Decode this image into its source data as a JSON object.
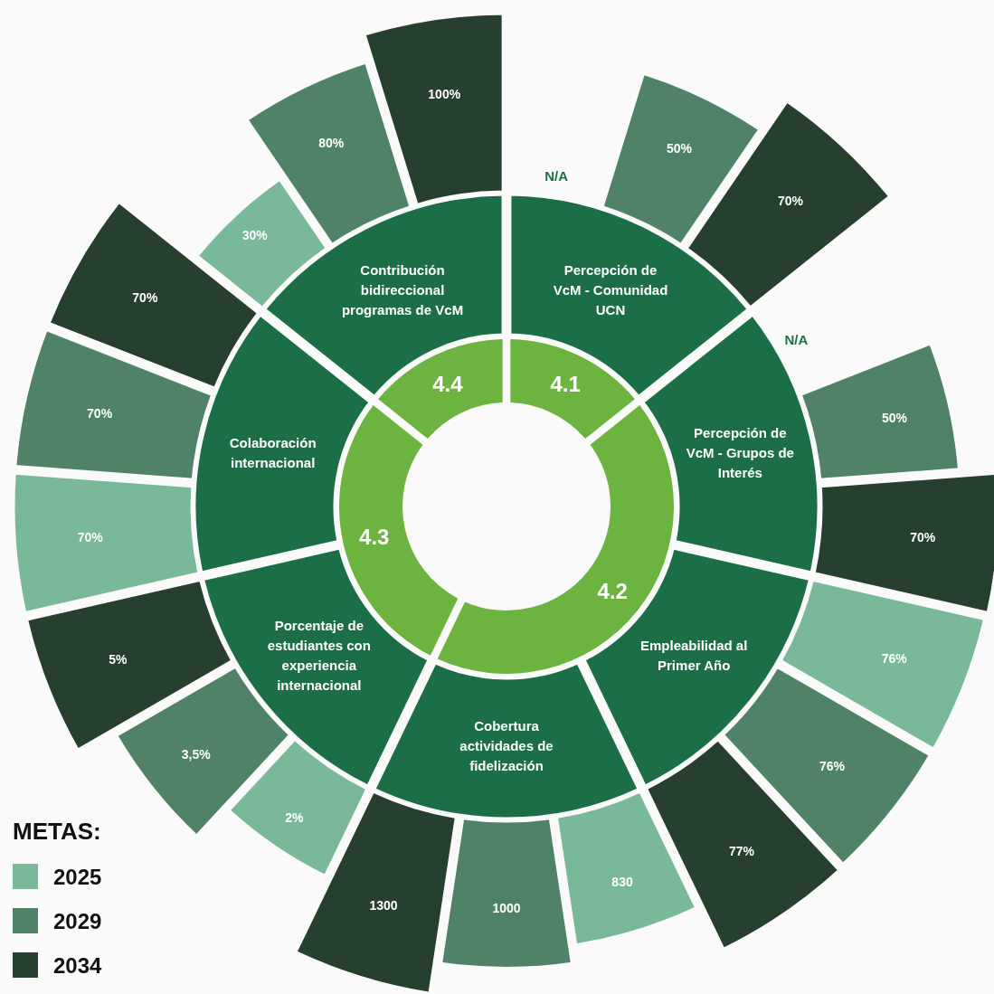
{
  "chart_data": [
    {
      "type": "donut",
      "categories": [
        "4.1",
        "4.2",
        "4.3",
        "4.4"
      ],
      "values": [
        14.3,
        42.9,
        28.6,
        14.3
      ],
      "colors": [
        "#6cb43f",
        "#6cb43f",
        "#6cb43f",
        "#6cb43f"
      ]
    },
    {
      "type": "other",
      "legend_title": "METAS:",
      "legend": "bottom left",
      "categories": [
        "Percepción de VcM - Comunidad UCN",
        "Percepción de VcM - Grupos de Interés",
        "Empleabilidad al Primer Año",
        "Cobertura actividades de fidelización",
        "Porcentaje de estudiantes con experiencia internacional",
        "Colaboración internacional",
        "Contribución bidireccional programas de VcM"
      ],
      "series": [
        {
          "name": "2025",
          "color": "#79b899",
          "values": [
            null,
            null,
            76,
            830,
            2,
            70,
            30
          ],
          "value_labels": [
            "N/A",
            "N/A",
            "76%",
            "830",
            "2%",
            "70%",
            "30%"
          ]
        },
        {
          "name": "2029",
          "color": "#4f8266",
          "values": [
            50,
            50,
            76,
            1000,
            3.5,
            70,
            80
          ],
          "value_labels": [
            "50%",
            "50%",
            "76%",
            "1000",
            "3,5%",
            "70%",
            "80%"
          ]
        },
        {
          "name": "2034",
          "color": "#263f2e",
          "values": [
            70,
            70,
            77,
            1300,
            5,
            70,
            100
          ],
          "value_labels": [
            "70%",
            "70%",
            "77%",
            "1300",
            "5%",
            "70%",
            "100%"
          ]
        }
      ]
    }
  ]
}
